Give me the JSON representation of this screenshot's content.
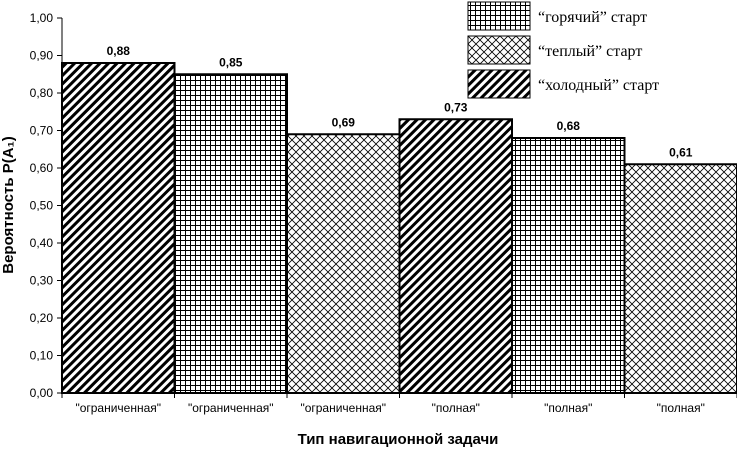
{
  "chart_data": {
    "type": "bar",
    "categories": [
      "\"ограниченная\"",
      "\"ограниченная\"",
      "\"ограниченная\"",
      "\"полная\"",
      "\"полная\"",
      "\"полная\""
    ],
    "values": [
      0.88,
      0.85,
      0.69,
      0.73,
      0.68,
      0.61
    ],
    "value_labels": [
      "0,88",
      "0,85",
      "0,69",
      "0,73",
      "0,68",
      "0,61"
    ],
    "bar_series": [
      "cold",
      "hot",
      "warm",
      "cold",
      "hot",
      "warm"
    ],
    "series": [
      {
        "key": "hot",
        "name": "“горячий” старт",
        "pattern": "grid"
      },
      {
        "key": "warm",
        "name": "“теплый” старт",
        "pattern": "crosshatch"
      },
      {
        "key": "cold",
        "name": "“холодный” старт",
        "pattern": "diagonal"
      }
    ],
    "title": "",
    "xlabel": "Тип навигационной задачи",
    "ylabel": "Вероятность P(A₁)",
    "ylim": [
      0,
      1
    ],
    "yticks": [
      "0,00",
      "0,10",
      "0,20",
      "0,30",
      "0,40",
      "0,50",
      "0,60",
      "0,70",
      "0,80",
      "0,90",
      "1,00"
    ],
    "grid": false,
    "legend_position": "top-right"
  }
}
